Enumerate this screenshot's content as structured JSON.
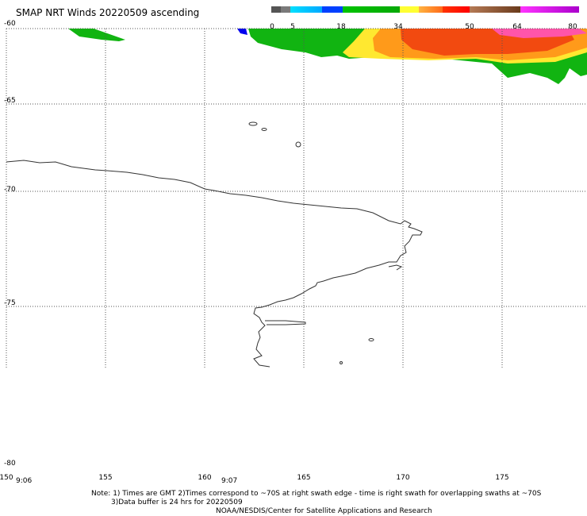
{
  "title": "SMAP NRT Winds 20220509 ascending",
  "colorbar": {
    "labels": [
      {
        "text": "0",
        "value": 0
      },
      {
        "text": "5",
        "value": 5
      },
      {
        "text": "18",
        "value": 18
      },
      {
        "text": "34",
        "value": 34
      },
      {
        "text": "50",
        "value": 50
      },
      {
        "text": "64",
        "value": 64
      },
      {
        "text": "80",
        "value": 80
      }
    ],
    "colors": [
      "#555555",
      "#7a7a7a",
      "#00a8ff",
      "#0048ff",
      "#00c400",
      "#06b106",
      "#ffff33",
      "#ff9933",
      "#ff3300",
      "#ff0000",
      "#9c6f4c",
      "#7a4422",
      "#ff00ff",
      "#cc00cc"
    ]
  },
  "axes": {
    "lat_labels": [
      "-60",
      "-65",
      "-70",
      "-75",
      "-80"
    ],
    "lon_labels": [
      "150",
      "155",
      "160",
      "165",
      "170",
      "175"
    ]
  },
  "swath_times": [
    "9:06",
    "9:07"
  ],
  "notes": {
    "line1": "Note: 1) Times are GMT 2)Times correspond to ~70S at right swath edge - time is right swath for overlapping swaths at ~70S",
    "line2": "3)Data buffer is 24 hrs for 20220509",
    "line3": "NOAA/NESDIS/Center for Satellite Applications and Research"
  }
}
